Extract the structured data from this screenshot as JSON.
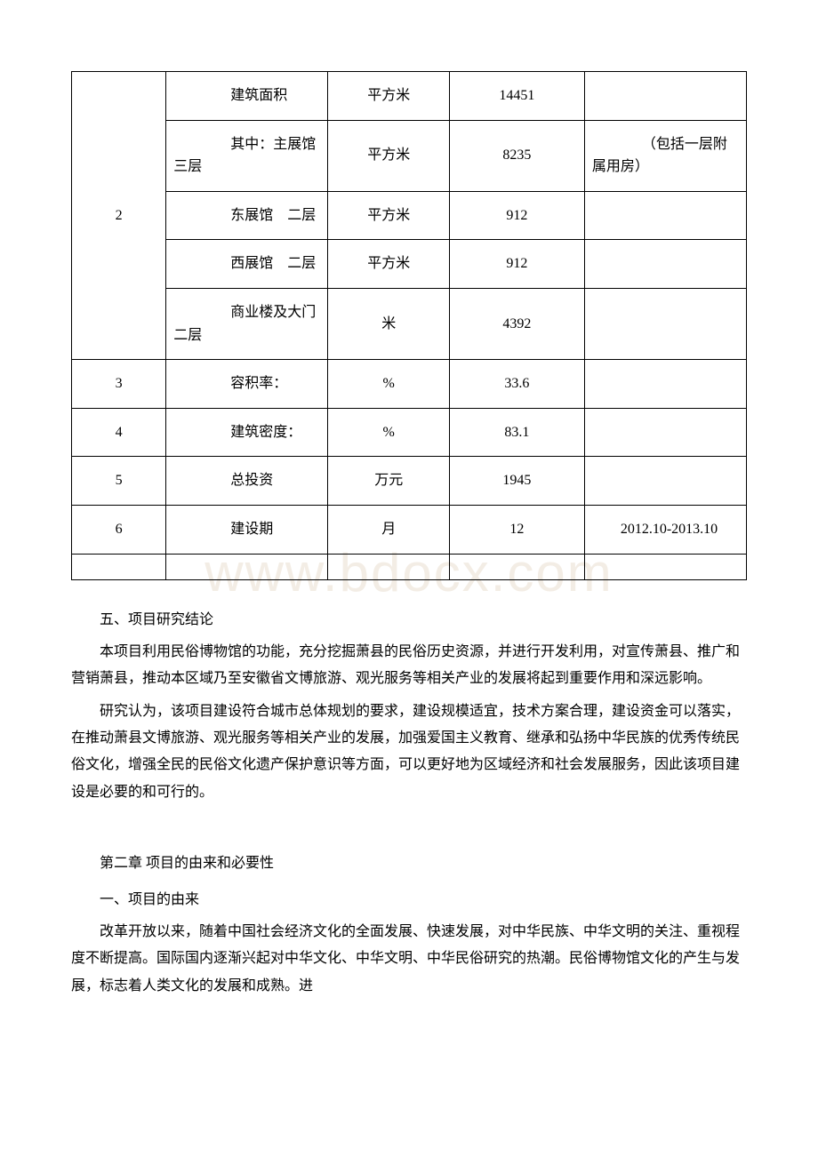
{
  "watermark": "www.bdocx.com",
  "table": {
    "rows": [
      {
        "idx": "",
        "name": "　　建筑面积",
        "unit": "平方米",
        "val": "14451",
        "note": ""
      },
      {
        "idx": "",
        "name": "　　其中：主展馆 三层",
        "unit": "平方米",
        "val": "8235",
        "note": "　　（包括一层附属用房）"
      },
      {
        "idx": "2",
        "name": "　　东展馆　二层",
        "unit": "平方米",
        "val": "912",
        "note": ""
      },
      {
        "idx": "",
        "name": "　　西展馆　二层",
        "unit": "平方米",
        "val": "912",
        "note": ""
      },
      {
        "idx": "",
        "name": "　　商业楼及大门 二层",
        "unit": "米",
        "val": "4392",
        "note": ""
      },
      {
        "idx": "3",
        "name": "　　容积率：",
        "unit": "%",
        "val": "33.6",
        "note": ""
      },
      {
        "idx": "4",
        "name": "　　建筑密度：",
        "unit": "%",
        "val": "83.1",
        "note": ""
      },
      {
        "idx": "5",
        "name": "　　总投资",
        "unit": "万元",
        "val": "1945",
        "note": ""
      },
      {
        "idx": "6",
        "name": "　　建设期",
        "unit": "月",
        "val": "12",
        "note": "2012.10-2013.10"
      },
      {
        "idx": "",
        "name": "",
        "unit": "",
        "val": "",
        "note": ""
      }
    ],
    "rowspan_group_start": 0,
    "rowspan_group_len": 5,
    "rowspan_group_idx": "2"
  },
  "section5_title": "五、项目研究结论",
  "section5_p1": "本项目利用民俗博物馆的功能，充分挖掘萧县的民俗历史资源，并进行开发利用，对宣传萧县、推广和营销萧县，推动本区域乃至安徽省文博旅游、观光服务等相关产业的发展将起到重要作用和深远影响。",
  "section5_p2": "研究认为，该项目建设符合城市总体规划的要求，建设规模适宜，技术方案合理，建设资金可以落实，在推动萧县文博旅游、观光服务等相关产业的发展，加强爱国主义教育、继承和弘扬中华民族的优秀传统民俗文化，增强全民的民俗文化遗产保护意识等方面，可以更好地为区域经济和社会发展服务，因此该项目建设是必要的和可行的。",
  "chapter2_title": "第二章 项目的由来和必要性",
  "chapter2_s1_title": "一、项目的由来",
  "chapter2_s1_p1": "改革开放以来，随着中国社会经济文化的全面发展、快速发展，对中华民族、中华文明的关注、重视程度不断提高。国际国内逐渐兴起对中华文化、中华文明、中华民俗研究的热潮。民俗博物馆文化的产生与发展，标志着人类文化的发展和成熟。进"
}
